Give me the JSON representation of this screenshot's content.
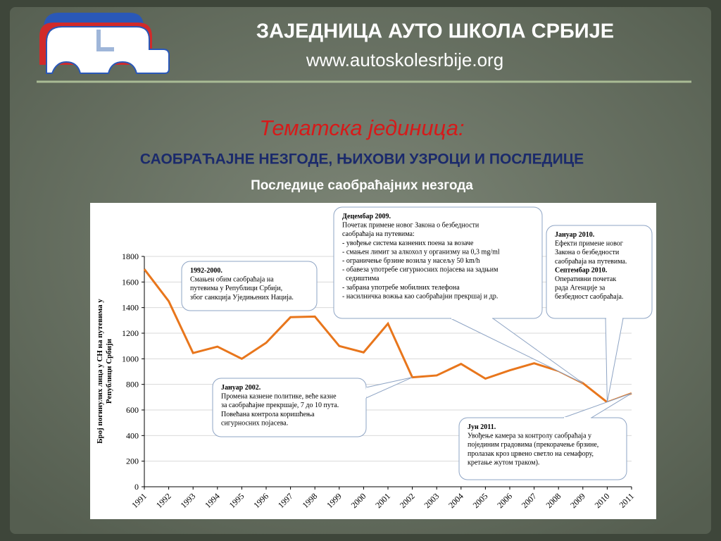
{
  "header": {
    "title": "ЗАЈЕДНИЦА АУТО ШКОЛА СРБИЈЕ",
    "url": "www.autoskolesrbije.org"
  },
  "topic_label": "Тематска јединица:",
  "topic": "САОБРАЋАЈНЕ НЕЗГОДЕ, ЊИХОВИ УЗРОЦИ И ПОСЛЕДИЦЕ",
  "subtopic": "Последице саобраћајних незгода",
  "chart_data": {
    "type": "line",
    "ylabel": [
      "Број погинулих лица у СН на путевима у",
      "Републици Србији"
    ],
    "categories": [
      "1991",
      "1992",
      "1993",
      "1994",
      "1995",
      "1996",
      "1997",
      "1998",
      "1999",
      "2000",
      "2001",
      "2002",
      "2003",
      "2004",
      "2005",
      "2006",
      "2007",
      "2008",
      "2009",
      "2010",
      "2011"
    ],
    "values": [
      1700,
      1450,
      1045,
      1095,
      1000,
      1125,
      1325,
      1330,
      1100,
      1050,
      1275,
      855,
      870,
      960,
      845,
      910,
      965,
      905,
      810,
      660,
      730
    ],
    "color": "#e8761c",
    "ylim": [
      0,
      1800
    ],
    "yticks": [
      0,
      200,
      400,
      600,
      800,
      1000,
      1200,
      1400,
      1600,
      1800
    ],
    "grid": true,
    "annotations": [
      {
        "blocks": [
          {
            "title": "1992-2000.",
            "lines": [
              "Смањен обим саобраћаја на",
              "путевима у Републици Србији,",
              "због санкција Уједињених Нација."
            ]
          }
        ]
      },
      {
        "blocks": [
          {
            "title": "Децембар 2009.",
            "lines": [
              "Почетак примене новог Закона о безбедности",
              "саобраћаја на путевима:",
              "- увођење система казнених поена за возаче",
              "- смањен лимит за алкохол у организму на 0,3 mg/ml",
              "- ограничење брзине возила у насељу 50 km/h",
              "- обавеза употребе сигурносних појасева на задњим",
              "  седиштима",
              "- забрана употребе мобилних телефона",
              "- насилничка вожња као саобраћајни прекршај и др."
            ]
          }
        ]
      },
      {
        "blocks": [
          {
            "title": "Јануар 2010.",
            "lines": [
              "Ефекти примене новог",
              "Закона о безбедности",
              "саобраћаја на путевима."
            ]
          },
          {
            "title": "Септембар 2010.",
            "lines": [
              "Оперативни почетак",
              "рада Агенције за",
              "безбедност саобраћаја."
            ]
          }
        ]
      },
      {
        "blocks": [
          {
            "title": "Јануар 2002.",
            "lines": [
              "Промена казнене политике, веће казне",
              "за саобраћајне прекршаје, 7 до 10 пута.",
              "Повећана контрола коришћења",
              "сигурносних појасева."
            ]
          }
        ]
      },
      {
        "blocks": [
          {
            "title": "Јун 2011.",
            "lines": [
              "Увођење камера за контролу саобраћаја у",
              "појединим градовима (прекорачење брзине,",
              "пролазак кроз црвено светло на семафору,",
              "кретање жутом траком)."
            ]
          }
        ]
      }
    ]
  }
}
